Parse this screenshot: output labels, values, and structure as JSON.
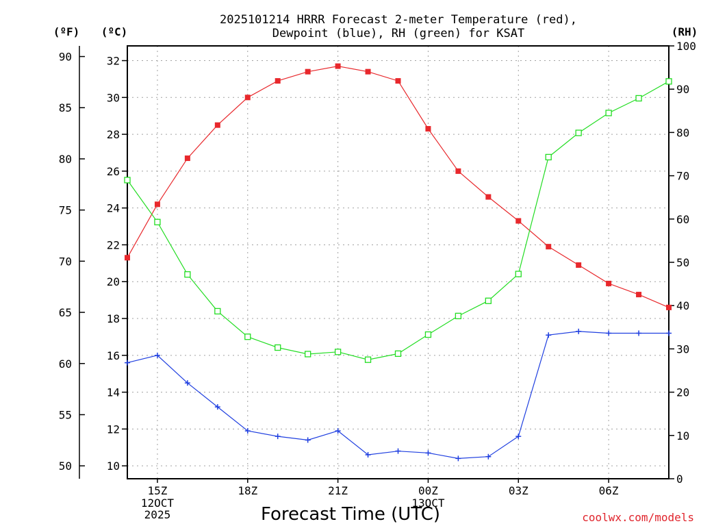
{
  "chart_data": {
    "type": "line",
    "title_lines": [
      "2025101214 HRRR Forecast 2-meter Temperature (red),",
      "Dewpoint (blue), RH (green) for KSAT"
    ],
    "xlabel": "Forecast Time (UTC)",
    "credit": "coolwx.com/models",
    "credit_color": "#e0242c",
    "axis_units": {
      "fahrenheit": "(ºF)",
      "celsius": "(ºC)",
      "rh": "(RH)"
    },
    "x_hours": [
      14,
      15,
      16,
      17,
      18,
      19,
      20,
      21,
      22,
      23,
      24,
      25,
      26,
      27,
      28,
      29,
      30,
      31,
      32
    ],
    "x_range": [
      14,
      32
    ],
    "x_ticks": [
      {
        "hour": 15,
        "label": "15Z",
        "sub": [
          "12OCT",
          "2025"
        ]
      },
      {
        "hour": 18,
        "label": "18Z",
        "sub": []
      },
      {
        "hour": 21,
        "label": "21Z",
        "sub": []
      },
      {
        "hour": 24,
        "label": "00Z",
        "sub": [
          "13OCT"
        ]
      },
      {
        "hour": 27,
        "label": "03Z",
        "sub": []
      },
      {
        "hour": 30,
        "label": "06Z",
        "sub": []
      }
    ],
    "celsius_range": [
      9.3,
      32.8
    ],
    "celsius_ticks": [
      10,
      12,
      14,
      16,
      18,
      20,
      22,
      24,
      26,
      28,
      30,
      32
    ],
    "fahrenheit_ticks": [
      50,
      55,
      60,
      65,
      70,
      75,
      80,
      85,
      90
    ],
    "rh_range": [
      0,
      100
    ],
    "rh_ticks": [
      0,
      10,
      20,
      30,
      40,
      50,
      60,
      70,
      80,
      90,
      100
    ],
    "series": [
      {
        "name": "Temperature",
        "color": "#e8282c",
        "marker": "filled-square",
        "axis": "celsius",
        "values": [
          21.3,
          24.2,
          26.7,
          28.5,
          30.0,
          30.9,
          31.4,
          31.7,
          31.4,
          30.9,
          28.3,
          26.0,
          24.6,
          23.3,
          21.9,
          20.9,
          19.9,
          19.3,
          18.6
        ]
      },
      {
        "name": "Dewpoint",
        "color": "#1f3fe0",
        "marker": "plus",
        "axis": "celsius",
        "values": [
          15.6,
          16.0,
          14.5,
          13.2,
          11.9,
          11.6,
          11.4,
          11.9,
          10.6,
          10.8,
          10.7,
          10.4,
          10.5,
          11.6,
          17.1,
          17.3,
          17.2,
          17.2,
          17.2
        ]
      },
      {
        "name": "RH",
        "color": "#22dd22",
        "marker": "open-square",
        "axis": "rh",
        "values": [
          69.0,
          59.3,
          47.2,
          38.7,
          32.8,
          30.3,
          28.8,
          29.3,
          27.5,
          28.9,
          33.3,
          37.6,
          41.1,
          47.3,
          74.3,
          79.9,
          84.5,
          87.9,
          91.8
        ]
      }
    ]
  }
}
